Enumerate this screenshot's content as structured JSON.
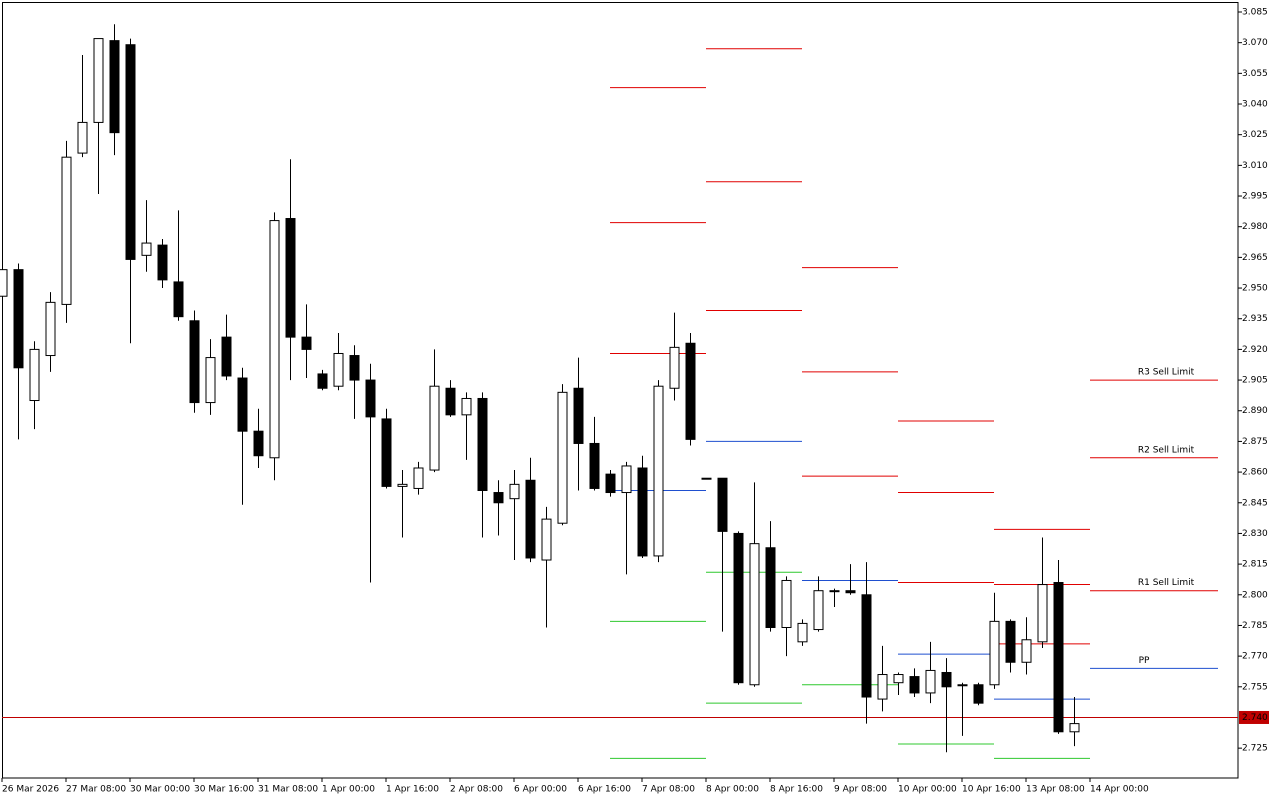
{
  "chart_data": {
    "type": "candlestick",
    "categories": [
      "26 Mar 2026",
      null,
      null,
      null,
      "27 Mar 08:00",
      null,
      null,
      null,
      "30 Mar 00:00",
      null,
      null,
      null,
      "30 Mar 16:00",
      null,
      null,
      null,
      "31 Mar 08:00",
      null,
      null,
      null,
      "1 Apr 00:00",
      null,
      null,
      null,
      "1 Apr 16:00",
      null,
      null,
      null,
      "2 Apr 08:00",
      null,
      null,
      null,
      "6 Apr 00:00",
      null,
      null,
      null,
      "6 Apr 16:00",
      null,
      null,
      null,
      "7 Apr 08:00",
      null,
      null,
      null,
      "8 Apr 00:00",
      null,
      null,
      null,
      "8 Apr 16:00",
      null,
      null,
      null,
      "9 Apr 08:00",
      null,
      null,
      null,
      "10 Apr 00:00",
      null,
      null,
      null,
      "10 Apr 16:00",
      null,
      null,
      null,
      "13 Apr 08:00",
      null,
      null,
      null,
      "14 Apr 00:00"
    ],
    "open": [
      2.946,
      2.959,
      2.895,
      2.917,
      2.942,
      3.016,
      3.031,
      3.071,
      3.069,
      2.966,
      2.971,
      2.953,
      2.934,
      2.894,
      2.926,
      2.906,
      2.88,
      2.867,
      2.984,
      2.926,
      2.908,
      2.902,
      2.917,
      2.905,
      2.886,
      2.853,
      2.852,
      2.861,
      2.901,
      2.888,
      2.896,
      2.85,
      2.847,
      2.856,
      2.817,
      2.835,
      2.901,
      2.874,
      2.859,
      2.85,
      2.862,
      2.819,
      2.901,
      2.923,
      2.857,
      2.857,
      2.83,
      2.756,
      2.823,
      2.784,
      2.777,
      2.783,
      2.802,
      2.802,
      2.8,
      2.749,
      2.757,
      2.76,
      2.752,
      2.762,
      2.756,
      2.756,
      2.756,
      2.787,
      2.767,
      2.777,
      2.806,
      2.733,
      null
    ],
    "high": [
      2.961,
      2.962,
      2.924,
      2.948,
      3.022,
      3.064,
      3.072,
      3.079,
      3.072,
      2.993,
      2.974,
      2.988,
      2.939,
      2.925,
      2.937,
      2.911,
      2.891,
      2.987,
      3.013,
      2.942,
      2.91,
      2.928,
      2.922,
      2.913,
      2.891,
      2.861,
      2.865,
      2.92,
      2.905,
      2.899,
      2.899,
      2.856,
      2.861,
      2.867,
      2.843,
      2.903,
      2.916,
      2.887,
      2.861,
      2.865,
      2.868,
      2.905,
      2.938,
      2.928,
      2.857,
      2.857,
      2.831,
      2.855,
      2.836,
      2.809,
      2.788,
      2.809,
      2.803,
      2.815,
      2.816,
      2.775,
      2.762,
      2.764,
      2.777,
      2.769,
      2.757,
      2.757,
      2.801,
      2.788,
      2.789,
      2.828,
      2.817,
      2.75,
      null
    ],
    "low": [
      2.944,
      2.876,
      2.881,
      2.909,
      2.933,
      3.014,
      2.996,
      3.015,
      2.923,
      2.958,
      2.95,
      2.934,
      2.889,
      2.888,
      2.905,
      2.844,
      2.862,
      2.856,
      2.905,
      2.906,
      2.9,
      2.9,
      2.886,
      2.806,
      2.852,
      2.828,
      2.849,
      2.86,
      2.887,
      2.866,
      2.828,
      2.829,
      2.817,
      2.816,
      2.784,
      2.834,
      2.851,
      2.851,
      2.848,
      2.81,
      2.818,
      2.816,
      2.895,
      2.873,
      2.857,
      2.782,
      2.756,
      2.755,
      2.782,
      2.77,
      2.775,
      2.782,
      2.794,
      2.8,
      2.737,
      2.743,
      2.751,
      2.75,
      2.747,
      2.723,
      2.731,
      2.746,
      2.754,
      2.762,
      2.761,
      2.774,
      2.732,
      2.726,
      null
    ],
    "close": [
      2.959,
      2.911,
      2.92,
      2.943,
      3.014,
      3.031,
      3.072,
      3.026,
      2.964,
      2.972,
      2.954,
      2.936,
      2.894,
      2.916,
      2.907,
      2.88,
      2.868,
      2.983,
      2.926,
      2.92,
      2.901,
      2.918,
      2.905,
      2.887,
      2.853,
      2.854,
      2.862,
      2.902,
      2.888,
      2.896,
      2.851,
      2.845,
      2.854,
      2.818,
      2.837,
      2.899,
      2.874,
      2.852,
      2.85,
      2.863,
      2.819,
      2.902,
      2.921,
      2.876,
      2.857,
      2.831,
      2.757,
      2.825,
      2.784,
      2.807,
      2.786,
      2.802,
      2.802,
      2.801,
      2.75,
      2.761,
      2.761,
      2.752,
      2.763,
      2.755,
      2.756,
      2.747,
      2.787,
      2.767,
      2.778,
      2.805,
      2.733,
      2.737,
      null
    ],
    "colors": {
      "up": "#ffffff",
      "down": "#000000",
      "outline": "#000000",
      "resistance": "#e00000",
      "pivot": "#1f4fcf",
      "support": "#2fc82f",
      "current_price": "#c00000"
    },
    "ylim": [
      2.7104,
      3.0894
    ],
    "yticks": [
      3.085,
      {
        "value": 3.07,
        "label": "3.070"
      },
      3.055,
      {
        "value": 3.04,
        "label": "3.040"
      },
      3.025,
      {
        "value": 3.01,
        "label": "3.010"
      },
      2.995,
      {
        "value": 2.98,
        "label": "2.980"
      },
      2.965,
      {
        "value": 2.95,
        "label": "2.950"
      },
      2.935,
      {
        "value": 2.92,
        "label": "2.920"
      },
      2.905,
      {
        "value": 2.89,
        "label": "2.890"
      },
      2.875,
      {
        "value": 2.86,
        "label": "2.860"
      },
      2.845,
      {
        "value": 2.83,
        "label": "2.830"
      },
      2.815,
      {
        "value": 2.8,
        "label": "2.800"
      },
      2.785,
      {
        "value": 2.77,
        "label": "2.770"
      },
      2.755,
      2.725
    ],
    "current_price": {
      "value": 2.74,
      "label": "2.740"
    },
    "pivots": [
      {
        "start": 38,
        "span": 6,
        "resistance": [
          3.048,
          2.982,
          2.918
        ],
        "pivot": 2.851,
        "support": [
          2.787,
          2.72
        ]
      },
      {
        "start": 44,
        "span": 6,
        "resistance": [
          3.067,
          3.002,
          2.939
        ],
        "pivot": 2.875,
        "support": [
          2.811,
          2.747
        ]
      },
      {
        "start": 50,
        "span": 6,
        "resistance": [
          2.96,
          2.909,
          2.858
        ],
        "pivot": 2.807,
        "support": [
          2.756
        ]
      },
      {
        "start": 56,
        "span": 6,
        "resistance": [
          2.885,
          2.85,
          2.806
        ],
        "pivot": 2.771,
        "support": [
          2.727
        ]
      },
      {
        "start": 62,
        "span": 6,
        "resistance": [
          2.832,
          2.805,
          2.776
        ],
        "pivot": 2.749,
        "support": [
          2.72
        ]
      },
      {
        "start": 68,
        "span": 8,
        "resistance": [
          2.905,
          2.867,
          2.802
        ],
        "resistance_labels": [
          "R3 Sell Limit",
          "R2 Sell Limit",
          "R1 Sell Limit"
        ],
        "pivot": 2.764,
        "pivot_label": "PP",
        "support": []
      }
    ]
  }
}
